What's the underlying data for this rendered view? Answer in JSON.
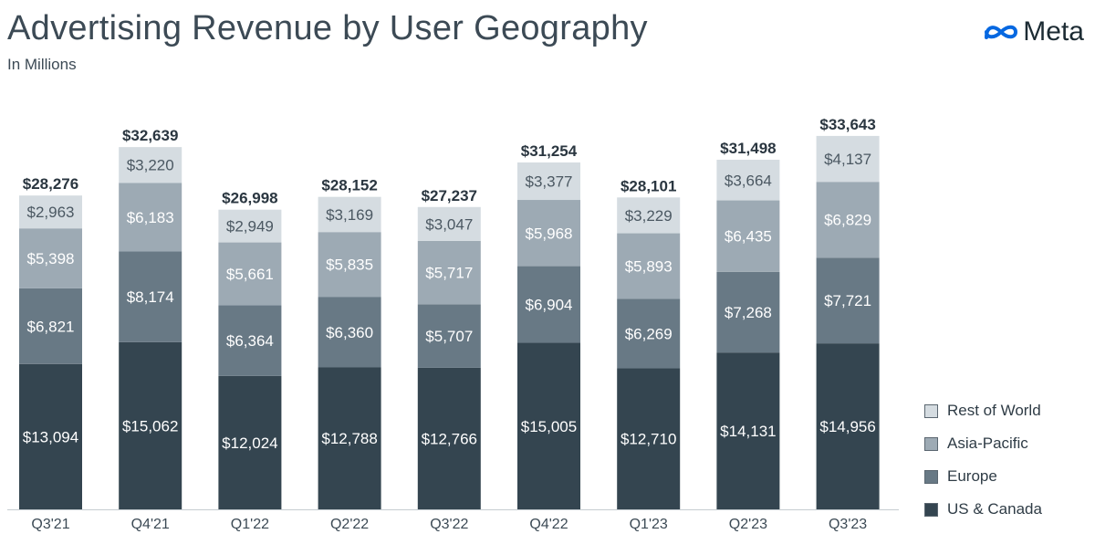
{
  "header": {
    "title": "Advertising Revenue by User Geography",
    "subtitle": "In Millions",
    "logo_text": "Meta",
    "logo_icon": "meta-infinity-icon"
  },
  "colors": {
    "us_canada": "#344550",
    "europe": "#687985",
    "asia_pacific": "#9daab4",
    "rest_of_world": "#d5dce1",
    "total_label": "#2a3640",
    "axis": "#c5ccd1",
    "logo_blue": "#0668e1"
  },
  "chart_data": {
    "type": "bar",
    "stacked": true,
    "title": "Advertising Revenue by User Geography",
    "subtitle": "In Millions",
    "xlabel": "",
    "ylabel": "",
    "ylim": [
      0,
      34000
    ],
    "categories": [
      "Q3'21",
      "Q4'21",
      "Q1'22",
      "Q2'22",
      "Q3'22",
      "Q4'22",
      "Q1'23",
      "Q2'23",
      "Q3'23"
    ],
    "series": [
      {
        "name": "US & Canada",
        "key": "us_canada",
        "values": [
          13094,
          15062,
          12024,
          12788,
          12766,
          15005,
          12710,
          14131,
          14956
        ],
        "labels": [
          "$13,094",
          "$15,062",
          "$12,024",
          "$12,788",
          "$12,766",
          "$15,005",
          "$12,710",
          "$14,131",
          "$14,956"
        ]
      },
      {
        "name": "Europe",
        "key": "europe",
        "values": [
          6821,
          8174,
          6364,
          6360,
          5707,
          6904,
          6269,
          7268,
          7721
        ],
        "labels": [
          "$6,821",
          "$8,174",
          "$6,364",
          "$6,360",
          "$5,707",
          "$6,904",
          "$6,269",
          "$7,268",
          "$7,721"
        ]
      },
      {
        "name": "Asia-Pacific",
        "key": "asia_pacific",
        "values": [
          5398,
          6183,
          5661,
          5835,
          5717,
          5968,
          5893,
          6435,
          6829
        ],
        "labels": [
          "$5,398",
          "$6,183",
          "$5,661",
          "$5,835",
          "$5,717",
          "$5,968",
          "$5,893",
          "$6,435",
          "$6,829"
        ]
      },
      {
        "name": "Rest of World",
        "key": "rest_of_world",
        "values": [
          2963,
          3220,
          2949,
          3169,
          3047,
          3377,
          3229,
          3664,
          4137
        ],
        "labels": [
          "$2,963",
          "$3,220",
          "$2,949",
          "$3,169",
          "$3,047",
          "$3,377",
          "$3,229",
          "$3,664",
          "$4,137"
        ]
      }
    ],
    "totals": [
      28276,
      32639,
      26998,
      28152,
      27237,
      31254,
      28101,
      31498,
      33643
    ],
    "total_labels": [
      "$28,276",
      "$32,639",
      "$26,998",
      "$28,152",
      "$27,237",
      "$31,254",
      "$28,101",
      "$31,498",
      "$33,643"
    ],
    "legend": [
      "Rest of World",
      "Asia-Pacific",
      "Europe",
      "US & Canada"
    ],
    "legend_position": "right"
  }
}
